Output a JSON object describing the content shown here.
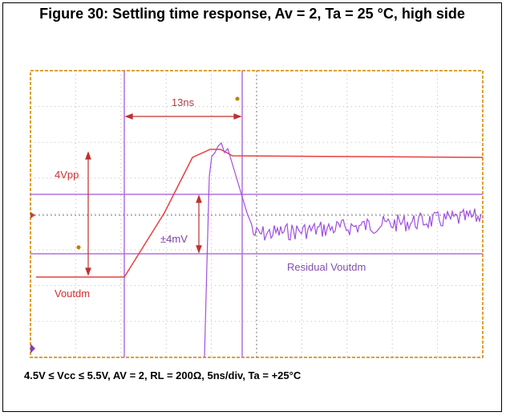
{
  "header": {
    "title": "Figure 30: Settling time response, Av = 2, Ta = 25 °C, high side"
  },
  "scope": {
    "annotations": {
      "time": "13ns",
      "amplitude": "4Vpp",
      "band": "±4mV",
      "residual": "Residual Voutdm",
      "signal": "Voutdm"
    }
  },
  "caption": "4.5V ≤ Vcc ≤ 5.5V, AV = 2, RL = 200Ω, 5ns/div, Ta = +25°C"
}
